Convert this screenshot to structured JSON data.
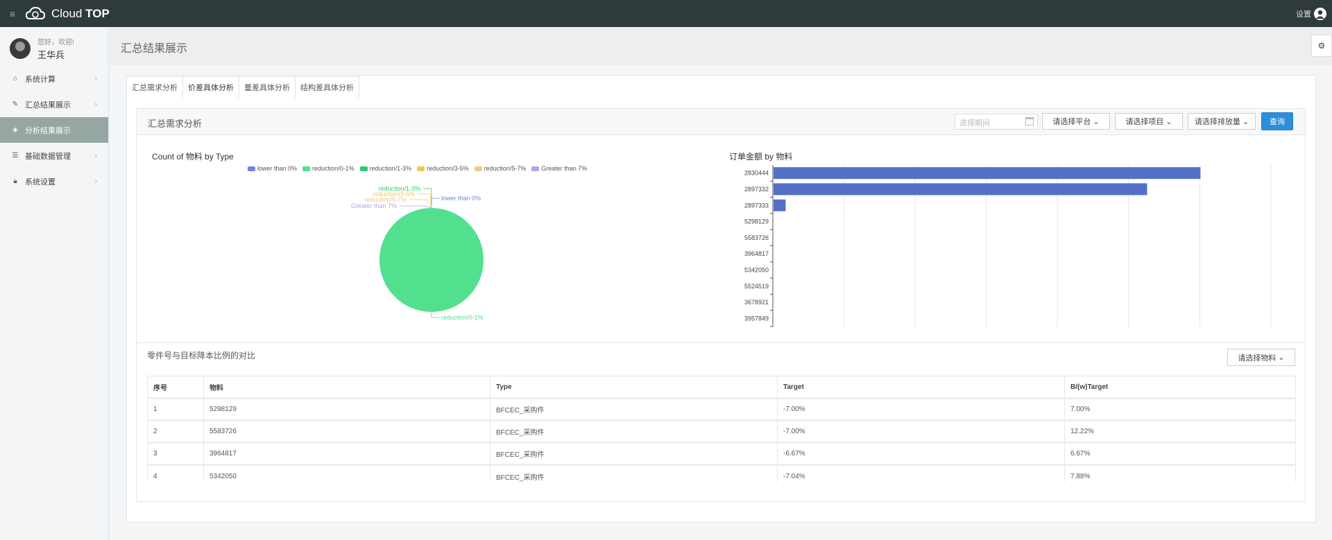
{
  "topbar": {
    "brand_light": "Cloud",
    "brand_bold": "TOP",
    "settings_label": "设置"
  },
  "profile": {
    "greeting": "您好，欢迎!",
    "name": "王华兵"
  },
  "sidebar": {
    "items": [
      {
        "label": "系统计算",
        "icon": "home-icon"
      },
      {
        "label": "汇总结果展示",
        "icon": "edit-icon"
      },
      {
        "label": "分析结果展示",
        "icon": "cube-icon",
        "active": true
      },
      {
        "label": "基础数据管理",
        "icon": "list-icon"
      },
      {
        "label": "系统设置",
        "icon": "lock-icon"
      }
    ]
  },
  "page": {
    "title": "汇总结果展示"
  },
  "tabs": [
    "汇总需求分析",
    "价差具体分析",
    "量差具体分析",
    "结构差具体分析"
  ],
  "panel": {
    "title": "汇总需求分析",
    "date_placeholder": "选择期间",
    "platform_select": "请选择平台",
    "project_select": "请选择项目",
    "emission_select": "请选择排放量",
    "query_button": "查询"
  },
  "colors": {
    "lower than 0%": "#6f86e0",
    "reduction/0-1%": "#52e08f",
    "reduction/1-3%": "#2ecc71",
    "reduction/3-5%": "#f2c94c",
    "reduction/5-7%": "#f4c78f",
    "Greater than 7%": "#b3a6e8",
    "bar": "#5470c6",
    "accent": "#2d8fdb"
  },
  "chart_data": [
    {
      "type": "pie",
      "title": "Count of 物料 by Type",
      "labels": [
        "lower than 0%",
        "reduction/0-1%",
        "reduction/1-3%",
        "reduction/3-5%",
        "reduction/5-7%",
        "Greater than 7%"
      ],
      "values": [
        0,
        100,
        0,
        0,
        0,
        0
      ],
      "legend": "top"
    },
    {
      "type": "bar",
      "orientation": "horizontal",
      "title": "订单金额 by 物料",
      "categories": [
        "2830444",
        "2897332",
        "2897333",
        "5298129",
        "5583726",
        "3964817",
        "5342050",
        "5524519",
        "3678921",
        "3957849"
      ],
      "values": [
        600,
        525,
        17,
        0,
        0,
        0,
        0,
        0,
        0,
        0
      ],
      "xlim": [
        0,
        700
      ],
      "grid": true
    }
  ],
  "compare": {
    "title": "零件号与目标降本比例的对比",
    "material_select": "请选择物料",
    "headers": [
      "序号",
      "物料",
      "Type",
      "Target",
      "B/(w)Target"
    ],
    "rows": [
      [
        "1",
        "5298129",
        "BFCEC_采购件",
        "-7.00%",
        "7.00%"
      ],
      [
        "2",
        "5583726",
        "BFCEC_采购件",
        "-7.00%",
        "12.22%"
      ],
      [
        "3",
        "3964817",
        "BFCEC_采购件",
        "-6.67%",
        "6.67%"
      ],
      [
        "4",
        "5342050",
        "BFCEC_采购件",
        "-7.04%",
        "7.88%"
      ]
    ]
  }
}
